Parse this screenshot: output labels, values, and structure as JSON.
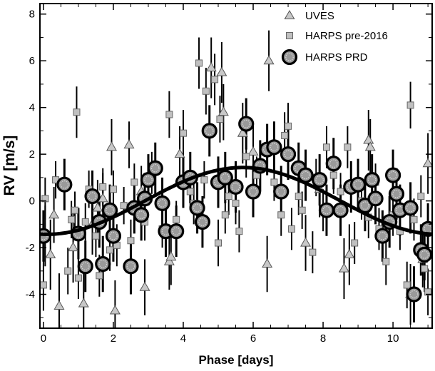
{
  "chart_data": {
    "type": "scatter",
    "xlabel": "Phase [days]",
    "ylabel": "RV [m/s]",
    "xlim": [
      -0.1,
      11.12
    ],
    "ylim": [
      -5.45,
      8.45
    ],
    "xticks": [
      0,
      2,
      4,
      6,
      8,
      10
    ],
    "xtick_labels": [
      "0",
      "2",
      "4",
      "6",
      "8",
      "10"
    ],
    "yticks": [
      -4,
      -2,
      0,
      2,
      4,
      6,
      8
    ],
    "ytick_labels": [
      "-4",
      "-2",
      "0",
      "2",
      "4",
      "6",
      "8"
    ],
    "grid": false,
    "legend": "top-right",
    "series": [
      {
        "name": "UVES",
        "marker": "triangle",
        "color": "#c8c8c8",
        "points": [
          {
            "x": 0.05,
            "y": -1.5,
            "err": 1.3
          },
          {
            "x": 0.2,
            "y": -2.3,
            "err": 1.5
          },
          {
            "x": 0.3,
            "y": -0.6,
            "err": 1.2
          },
          {
            "x": 0.45,
            "y": -4.5,
            "err": 1.4
          },
          {
            "x": 0.85,
            "y": -2.0,
            "err": 1.5
          },
          {
            "x": 1.15,
            "y": -4.4,
            "err": 1.4
          },
          {
            "x": 1.4,
            "y": -1.0,
            "err": 1.3
          },
          {
            "x": 1.55,
            "y": -0.3,
            "err": 1.2
          },
          {
            "x": 1.7,
            "y": 0.1,
            "err": 1.1
          },
          {
            "x": 1.95,
            "y": 2.3,
            "err": 1.2
          },
          {
            "x": 2.05,
            "y": -4.7,
            "err": 1.3
          },
          {
            "x": 2.45,
            "y": 2.4,
            "err": 1.0
          },
          {
            "x": 2.8,
            "y": 0.4,
            "err": 1.1
          },
          {
            "x": 2.9,
            "y": -3.7,
            "err": 1.2
          },
          {
            "x": 3.6,
            "y": -2.6,
            "err": 1.2
          },
          {
            "x": 3.65,
            "y": -2.4,
            "err": 1.2
          },
          {
            "x": 3.9,
            "y": 2.0,
            "err": 1.2
          },
          {
            "x": 4.8,
            "y": 5.7,
            "err": 1.3
          },
          {
            "x": 5.1,
            "y": 5.5,
            "err": 1.3
          },
          {
            "x": 5.15,
            "y": 3.8,
            "err": 1.2
          },
          {
            "x": 5.7,
            "y": 2.9,
            "err": 1.3
          },
          {
            "x": 6.0,
            "y": 2.1,
            "err": 1.2
          },
          {
            "x": 6.4,
            "y": -2.7,
            "err": 1.2
          },
          {
            "x": 6.45,
            "y": 6.0,
            "err": 1.3
          },
          {
            "x": 7.5,
            "y": -1.8,
            "err": 1.2
          },
          {
            "x": 7.9,
            "y": 0.5,
            "err": 1.2
          },
          {
            "x": 8.6,
            "y": -2.9,
            "err": 1.3
          },
          {
            "x": 8.75,
            "y": -2.3,
            "err": 1.3
          },
          {
            "x": 9.3,
            "y": 2.6,
            "err": 1.3
          },
          {
            "x": 9.35,
            "y": 2.3,
            "err": 1.2
          },
          {
            "x": 10.5,
            "y": -4.0,
            "err": 1.3
          },
          {
            "x": 10.85,
            "y": -2.5,
            "err": 1.2
          },
          {
            "x": 11.0,
            "y": 1.6,
            "err": 1.3
          }
        ]
      },
      {
        "name": "HARPS pre-2016",
        "marker": "square",
        "color": "#c0c0c0",
        "points": [
          {
            "x": 0.0,
            "y": -3.6,
            "err": 1.1
          },
          {
            "x": 0.05,
            "y": 0.1,
            "err": 0.9
          },
          {
            "x": 0.35,
            "y": 0.9,
            "err": 0.8
          },
          {
            "x": 0.7,
            "y": -3.0,
            "err": 1.0
          },
          {
            "x": 0.8,
            "y": -0.8,
            "err": 0.8
          },
          {
            "x": 0.9,
            "y": -0.4,
            "err": 0.8
          },
          {
            "x": 0.95,
            "y": 3.8,
            "err": 1.1
          },
          {
            "x": 1.0,
            "y": -3.3,
            "err": 0.9
          },
          {
            "x": 1.2,
            "y": -0.9,
            "err": 0.8
          },
          {
            "x": 1.3,
            "y": 0.5,
            "err": 0.8
          },
          {
            "x": 1.5,
            "y": -1.5,
            "err": 0.9
          },
          {
            "x": 1.6,
            "y": -3.2,
            "err": 0.9
          },
          {
            "x": 1.7,
            "y": 0.6,
            "err": 0.8
          },
          {
            "x": 1.9,
            "y": -2.1,
            "err": 0.9
          },
          {
            "x": 2.0,
            "y": 0.5,
            "err": 0.8
          },
          {
            "x": 2.1,
            "y": -1.9,
            "err": 0.9
          },
          {
            "x": 2.3,
            "y": -0.2,
            "err": 0.8
          },
          {
            "x": 2.5,
            "y": -1.7,
            "err": 0.9
          },
          {
            "x": 2.6,
            "y": 0.8,
            "err": 0.8
          },
          {
            "x": 2.9,
            "y": -0.9,
            "err": 0.8
          },
          {
            "x": 3.1,
            "y": 1.2,
            "err": 0.9
          },
          {
            "x": 3.4,
            "y": -1.2,
            "err": 0.8
          },
          {
            "x": 3.6,
            "y": 3.7,
            "err": 1.0
          },
          {
            "x": 3.8,
            "y": -0.8,
            "err": 0.8
          },
          {
            "x": 4.0,
            "y": 2.9,
            "err": 1.0
          },
          {
            "x": 4.2,
            "y": 0.4,
            "err": 0.8
          },
          {
            "x": 4.3,
            "y": -0.1,
            "err": 0.9
          },
          {
            "x": 4.45,
            "y": 5.9,
            "err": 1.1
          },
          {
            "x": 4.6,
            "y": 0.9,
            "err": 0.8
          },
          {
            "x": 4.65,
            "y": 4.7,
            "err": 1.0
          },
          {
            "x": 4.9,
            "y": 5.2,
            "err": 1.1
          },
          {
            "x": 5.0,
            "y": -1.8,
            "err": 1.0
          },
          {
            "x": 5.05,
            "y": 3.5,
            "err": 1.0
          },
          {
            "x": 5.2,
            "y": -0.6,
            "err": 0.8
          },
          {
            "x": 5.3,
            "y": 0.2,
            "err": 0.8
          },
          {
            "x": 5.5,
            "y": -0.1,
            "err": 0.9
          },
          {
            "x": 5.6,
            "y": -1.3,
            "err": 0.9
          },
          {
            "x": 5.8,
            "y": 1.9,
            "err": 0.9
          },
          {
            "x": 6.1,
            "y": 1.1,
            "err": 0.8
          },
          {
            "x": 6.2,
            "y": 1.6,
            "err": 0.8
          },
          {
            "x": 6.6,
            "y": 0.8,
            "err": 0.8
          },
          {
            "x": 6.8,
            "y": -0.6,
            "err": 0.9
          },
          {
            "x": 6.9,
            "y": 2.8,
            "err": 1.0
          },
          {
            "x": 7.0,
            "y": 3.2,
            "err": 1.0
          },
          {
            "x": 7.1,
            "y": -1.2,
            "err": 0.9
          },
          {
            "x": 7.3,
            "y": 0.2,
            "err": 0.8
          },
          {
            "x": 7.4,
            "y": -0.4,
            "err": 0.8
          },
          {
            "x": 7.7,
            "y": -2.2,
            "err": 0.9
          },
          {
            "x": 7.8,
            "y": 1.0,
            "err": 0.8
          },
          {
            "x": 8.0,
            "y": -0.4,
            "err": 0.9
          },
          {
            "x": 8.1,
            "y": 2.3,
            "err": 0.9
          },
          {
            "x": 8.3,
            "y": 1.1,
            "err": 0.8
          },
          {
            "x": 8.5,
            "y": 0.4,
            "err": 0.8
          },
          {
            "x": 8.7,
            "y": 2.3,
            "err": 0.9
          },
          {
            "x": 8.9,
            "y": -1.8,
            "err": 0.9
          },
          {
            "x": 9.1,
            "y": 0.0,
            "err": 0.8
          },
          {
            "x": 9.3,
            "y": -0.7,
            "err": 0.9
          },
          {
            "x": 9.5,
            "y": 0.8,
            "err": 0.8
          },
          {
            "x": 9.6,
            "y": -1.2,
            "err": 0.9
          },
          {
            "x": 9.8,
            "y": -2.6,
            "err": 1.0
          },
          {
            "x": 10.0,
            "y": -0.6,
            "err": 0.9
          },
          {
            "x": 10.2,
            "y": -1.3,
            "err": 0.8
          },
          {
            "x": 10.4,
            "y": -3.6,
            "err": 1.0
          },
          {
            "x": 10.5,
            "y": 4.1,
            "err": 1.0
          },
          {
            "x": 10.6,
            "y": -0.8,
            "err": 0.9
          },
          {
            "x": 10.8,
            "y": 0.2,
            "err": 0.9
          },
          {
            "x": 10.9,
            "y": -2.9,
            "err": 1.0
          },
          {
            "x": 11.0,
            "y": -3.9,
            "err": 1.0
          }
        ]
      },
      {
        "name": "HARPS PRD",
        "marker": "circle",
        "color": "#9a9a9a",
        "points": [
          {
            "x": 0.0,
            "y": -1.5,
            "err": 1.1
          },
          {
            "x": 0.6,
            "y": 0.7,
            "err": 1.1
          },
          {
            "x": 1.0,
            "y": -1.4,
            "err": 1.1
          },
          {
            "x": 1.2,
            "y": -2.8,
            "err": 1.1
          },
          {
            "x": 1.4,
            "y": 0.2,
            "err": 1.1
          },
          {
            "x": 1.6,
            "y": -0.9,
            "err": 1.1
          },
          {
            "x": 1.7,
            "y": -2.7,
            "err": 1.2
          },
          {
            "x": 1.9,
            "y": -0.4,
            "err": 1.1
          },
          {
            "x": 2.0,
            "y": -1.5,
            "err": 1.1
          },
          {
            "x": 2.5,
            "y": -2.8,
            "err": 1.2
          },
          {
            "x": 2.6,
            "y": -0.3,
            "err": 1.1
          },
          {
            "x": 2.8,
            "y": -0.6,
            "err": 1.1
          },
          {
            "x": 2.9,
            "y": 0.1,
            "err": 1.1
          },
          {
            "x": 3.0,
            "y": 0.9,
            "err": 1.1
          },
          {
            "x": 3.2,
            "y": 1.4,
            "err": 1.1
          },
          {
            "x": 3.4,
            "y": -0.1,
            "err": 1.1
          },
          {
            "x": 3.5,
            "y": -1.3,
            "err": 1.1
          },
          {
            "x": 3.8,
            "y": -1.3,
            "err": 1.1
          },
          {
            "x": 4.0,
            "y": 0.8,
            "err": 1.1
          },
          {
            "x": 4.2,
            "y": 1.0,
            "err": 1.1
          },
          {
            "x": 4.4,
            "y": -0.3,
            "err": 1.1
          },
          {
            "x": 4.55,
            "y": -0.9,
            "err": 1.1
          },
          {
            "x": 4.75,
            "y": 3.0,
            "err": 1.1
          },
          {
            "x": 5.0,
            "y": 0.8,
            "err": 1.1
          },
          {
            "x": 5.2,
            "y": 1.0,
            "err": 1.1
          },
          {
            "x": 5.5,
            "y": 0.6,
            "err": 1.1
          },
          {
            "x": 5.8,
            "y": 3.3,
            "err": 1.1
          },
          {
            "x": 6.0,
            "y": 0.4,
            "err": 1.1
          },
          {
            "x": 6.2,
            "y": 1.5,
            "err": 1.1
          },
          {
            "x": 6.4,
            "y": 2.2,
            "err": 1.1
          },
          {
            "x": 6.6,
            "y": 2.3,
            "err": 1.1
          },
          {
            "x": 6.8,
            "y": 0.4,
            "err": 1.1
          },
          {
            "x": 7.0,
            "y": 2.0,
            "err": 1.1
          },
          {
            "x": 7.3,
            "y": 1.4,
            "err": 1.1
          },
          {
            "x": 7.5,
            "y": 1.1,
            "err": 1.1
          },
          {
            "x": 7.9,
            "y": 0.9,
            "err": 1.1
          },
          {
            "x": 8.1,
            "y": -0.4,
            "err": 1.1
          },
          {
            "x": 8.3,
            "y": 1.6,
            "err": 1.1
          },
          {
            "x": 8.5,
            "y": -0.4,
            "err": 1.1
          },
          {
            "x": 8.8,
            "y": 0.6,
            "err": 1.1
          },
          {
            "x": 9.0,
            "y": 0.7,
            "err": 1.1
          },
          {
            "x": 9.2,
            "y": -0.2,
            "err": 1.1
          },
          {
            "x": 9.4,
            "y": 0.9,
            "err": 1.1
          },
          {
            "x": 9.5,
            "y": 0.1,
            "err": 1.1
          },
          {
            "x": 9.7,
            "y": -1.5,
            "err": 1.1
          },
          {
            "x": 9.9,
            "y": -0.9,
            "err": 1.1
          },
          {
            "x": 10.0,
            "y": 1.1,
            "err": 1.1
          },
          {
            "x": 10.1,
            "y": 0.3,
            "err": 1.1
          },
          {
            "x": 10.2,
            "y": -0.4,
            "err": 1.1
          },
          {
            "x": 10.5,
            "y": -0.3,
            "err": 1.1
          },
          {
            "x": 10.6,
            "y": -4.0,
            "err": 1.2
          },
          {
            "x": 10.8,
            "y": -2.1,
            "err": 1.1
          },
          {
            "x": 10.9,
            "y": -2.3,
            "err": 1.1
          },
          {
            "x": 11.0,
            "y": -1.2,
            "err": 1.1
          }
        ]
      }
    ],
    "model_curve": {
      "amplitude": 1.43,
      "offset": 0.0,
      "period": 11.2,
      "phase_of_max": 5.7,
      "color": "#000000"
    }
  }
}
